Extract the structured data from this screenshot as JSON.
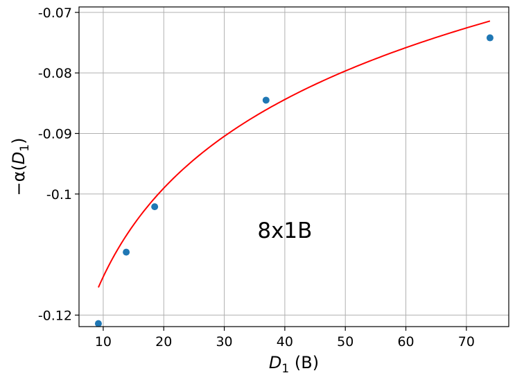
{
  "chart_data": {
    "type": "scatter",
    "xlabel": {
      "main": "D",
      "sub": "1",
      "suffix": " (B)"
    },
    "ylabel": {
      "prefix": "−α(",
      "main": "D",
      "sub": "1",
      "suffix": ")"
    },
    "annotation": {
      "text": "8x1B",
      "x": 40,
      "y": -0.106
    },
    "xlim": [
      6,
      77
    ],
    "ylim": [
      -0.1219,
      -0.0691
    ],
    "xticks": [
      10,
      20,
      30,
      40,
      50,
      60,
      70
    ],
    "xtick_labels": [
      "10",
      "20",
      "30",
      "40",
      "50",
      "60",
      "70"
    ],
    "yticks": [
      -0.12,
      -0.1,
      -0.09,
      -0.08,
      -0.07
    ],
    "ytick_labels": [
      "-0.12",
      "-0.1",
      "-0.09",
      "-0.08",
      "-0.07"
    ],
    "grid": true,
    "series": [
      {
        "kind": "scatter",
        "color": "#1f77b4",
        "x": [
          9.2,
          13.8,
          18.5,
          36.9,
          73.9
        ],
        "y": [
          -0.1214,
          -0.1096,
          -0.1021,
          -0.0845,
          -0.0742
        ]
      },
      {
        "kind": "line",
        "color": "#ff0000",
        "model": "a + b*ln(x)",
        "a": -0.1623,
        "b": 0.02112,
        "x_range": [
          9.2,
          73.9
        ]
      }
    ]
  }
}
